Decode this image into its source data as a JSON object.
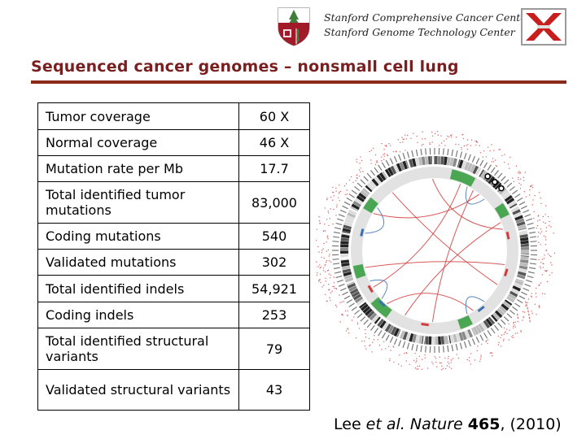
{
  "header": {
    "line1": "Stanford Comprehensive Cancer Center",
    "line2": "Stanford Genome Technology Center"
  },
  "title": "Sequenced cancer genomes – nonsmall cell lung",
  "table": {
    "rows": [
      {
        "label": "Tumor coverage",
        "value": "60 X"
      },
      {
        "label": "Normal coverage",
        "value": "46 X"
      },
      {
        "label": "Mutation rate per Mb",
        "value": "17.7"
      },
      {
        "label": "Total identified tumor mutations",
        "value": "83,000"
      },
      {
        "label": "Coding mutations",
        "value": "540"
      },
      {
        "label": "Validated mutations",
        "value": "302"
      },
      {
        "label": "Total identified indels",
        "value": "54,921"
      },
      {
        "label": "Coding indels",
        "value": "253"
      },
      {
        "label": "Total identified structural variants",
        "value": "79"
      },
      {
        "label": "Validated structural variants",
        "value": "43"
      }
    ]
  },
  "citation": {
    "authors": "Lee ",
    "etal": "et al.",
    "journal": "Nature",
    "volume": "465",
    "year": ", (2010)"
  },
  "colors": {
    "title": "#7a1f1f",
    "rule": "#8b2a1a",
    "shield_red": "#a11a2a",
    "shield_green": "#3f7d3a",
    "x_red": "#c81e1e",
    "circos_red": "#d23c3c",
    "circos_blue": "#3a6fb0",
    "circos_green": "#3aa043"
  },
  "icons": {
    "left_logo": "stanford-shield-icon",
    "right_logo": "sgtc-x-logo-icon"
  }
}
